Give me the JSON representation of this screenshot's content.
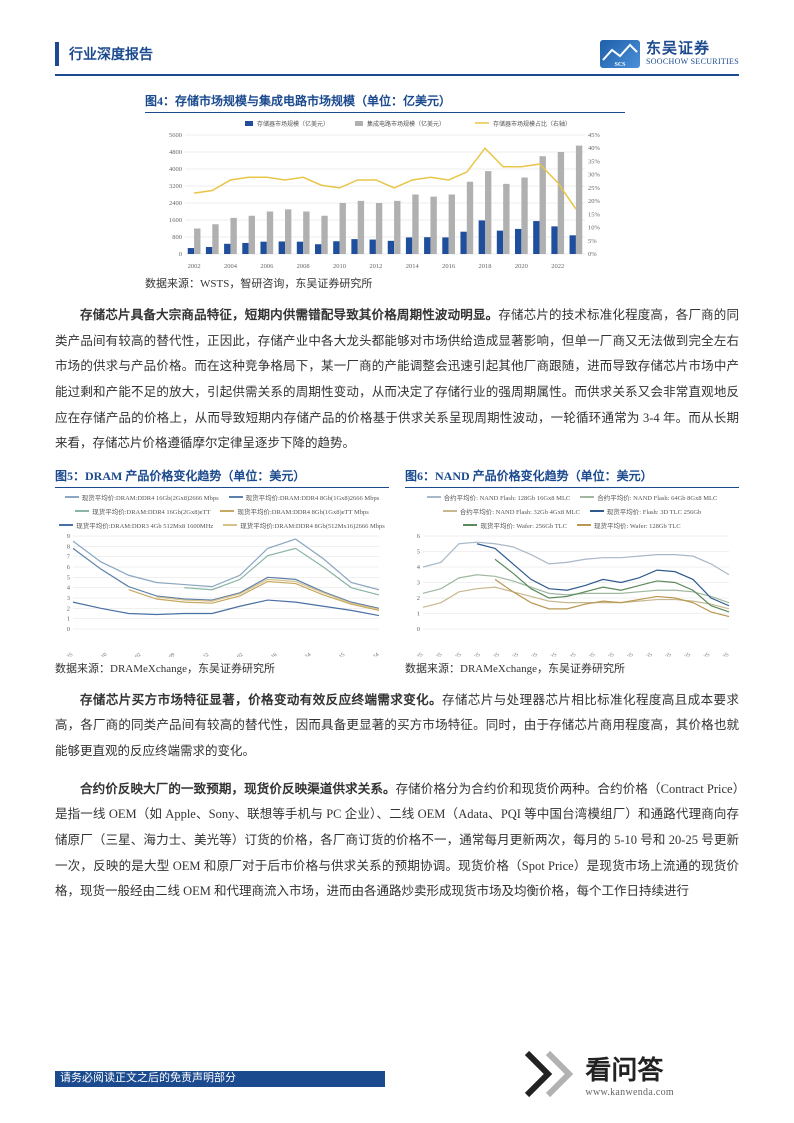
{
  "header": {
    "title": "行业深度报告"
  },
  "logo": {
    "cn": "东吴证券",
    "en": "SOOCHOW SECURITIES"
  },
  "figure4": {
    "title": "图4：存储市场规模与集成电路市场规模（单位：亿美元）",
    "type": "bar+line",
    "legend": [
      "存储器市场规模（亿美元）",
      "集成电路市场规模（亿美元）",
      "存储器市场规模占比（右轴）"
    ],
    "x_labels": [
      "2002",
      "2004",
      "2006",
      "2008",
      "2010",
      "2012",
      "2014",
      "2016",
      "2018",
      "2020",
      "2022"
    ],
    "categories_count": 22,
    "bar1_values": [
      280,
      330,
      480,
      520,
      580,
      590,
      580,
      460,
      600,
      700,
      680,
      620,
      780,
      790,
      780,
      1050,
      1580,
      1100,
      1180,
      1550,
      1300,
      880
    ],
    "bar2_values": [
      1200,
      1400,
      1700,
      1800,
      2000,
      2100,
      2000,
      1800,
      2400,
      2500,
      2400,
      2500,
      2800,
      2700,
      2800,
      3400,
      3900,
      3300,
      3600,
      4600,
      4800,
      5100
    ],
    "bar1_color": "#1f4e9c",
    "bar2_color": "#b0b0b0",
    "line_values": [
      23,
      24,
      28,
      29,
      29,
      28,
      29,
      26,
      25,
      28,
      28,
      25,
      28,
      29,
      28,
      31,
      40,
      33,
      33,
      34,
      27,
      17
    ],
    "line_color": "#e8c547",
    "y1_max": 5600,
    "y1_ticks": [
      0,
      800,
      1600,
      2400,
      3200,
      4000,
      4800,
      5600
    ],
    "y2_max": 45,
    "y2_ticks": [
      "0%",
      "5%",
      "10%",
      "15%",
      "20%",
      "25%",
      "30%",
      "35%",
      "40%",
      "45%"
    ],
    "background_color": "#ffffff",
    "grid_color": "#d9d9d9",
    "source": "数据来源：WSTS，智研咨询，东吴证券研究所"
  },
  "paragraph1": {
    "bold": "存储芯片具备大宗商品特征，短期内供需错配导致其价格周期性波动明显。",
    "text": "存储芯片的技术标准化程度高，各厂商的同类产品间有较高的替代性，正因此，存储产业中各大龙头都能够对市场供给造成显著影响，但单一厂商又无法做到完全左右市场的供求与产品价格。而在这种竞争格局下，某一厂商的产能调整会迅速引起其他厂商跟随，进而导致存储芯片市场中产能过剩和产能不足的放大，引起供需关系的周期性变动，从而决定了存储行业的强周期属性。而供求关系又会非常直观地反应在存储产品的价格上，从而导致短期内存储产品的价格基于供求关系呈现周期性波动，一轮循环通常为 3-4 年。而从长期来看，存储芯片价格遵循摩尔定律呈逐步下降的趋势。"
  },
  "figure5": {
    "title": "图5：DRAM 产品价格变化趋势（单位：美元）",
    "type": "line",
    "legend": [
      "现货平均价:DRAM:DDR4 16Gb(2Gx8)2666 Mbps",
      "现货平均价:DRAM:DDR4 8Gb(1Gx8)2666 Mbps",
      "现货平均价:DRAM:DDR4 16Gb(2Gx8)eTT",
      "现货平均价:DRAM:DDR4 8Gb(1Gx8)eTT Mbps",
      "现货平均价:DRAM:DDR3 4Gb 512Mx8 1600MHz",
      "现货平均价:DRAM:DDR4 8Gb(512Mx16)2666 Mbps"
    ],
    "colors": [
      "#8aa6c1",
      "#5b7fa8",
      "#88b5a5",
      "#c4a960",
      "#4a6fa5",
      "#d9c28a"
    ],
    "y_ticks": [
      0,
      1,
      2,
      3,
      4,
      5,
      6,
      7,
      8,
      9
    ],
    "y_max": 9,
    "x_labels": [
      "2018-07-25",
      "2019-01-10",
      "2019-07-02",
      "2019-12-09",
      "2020-05-22",
      "2020-11-02",
      "2021-04-16",
      "2021-09-24",
      "2022-03-15",
      "2022-08-24"
    ],
    "series": [
      [
        8.5,
        6.5,
        5.2,
        4.5,
        4.3,
        4.1,
        5.2,
        7.8,
        8.7,
        6.8,
        4.5,
        3.8
      ],
      [
        7.8,
        5.8,
        4.1,
        3.2,
        2.9,
        2.8,
        3.5,
        5.0,
        4.8,
        3.6,
        2.6,
        2.0
      ],
      [
        null,
        null,
        null,
        null,
        4.0,
        3.8,
        4.8,
        7.1,
        7.8,
        6.0,
        4.0,
        3.3
      ],
      [
        null,
        null,
        3.8,
        2.9,
        2.6,
        2.5,
        3.2,
        4.6,
        4.4,
        3.3,
        2.4,
        1.8
      ],
      [
        2.6,
        2.0,
        1.5,
        1.4,
        1.5,
        1.5,
        2.2,
        2.8,
        2.6,
        2.2,
        1.8,
        1.3
      ],
      [
        null,
        null,
        null,
        3.1,
        2.8,
        2.7,
        3.4,
        4.8,
        4.6,
        3.5,
        2.5,
        1.9
      ]
    ],
    "grid_color": "#e0e0e0",
    "source": "数据来源：DRAMeXchange，东吴证券研究所"
  },
  "figure6": {
    "title": "图6：NAND 产品价格变化趋势（单位：美元）",
    "type": "line",
    "legend": [
      "合约平均价: NAND Flash: 128Gb 16Gx8 MLC",
      "合约平均价: NAND Flash: 64Gb 8Gx8 MLC",
      "合约平均价: NAND Flash: 32Gb 4Gx8 MLC",
      "现货平均价: Flash: 3D TLC 256Gb",
      "现货平均价: Wafer: 256Gb TLC",
      "现货平均价: Wafer: 128Gb TLC"
    ],
    "colors": [
      "#a8b8c8",
      "#9fb89f",
      "#c8b890",
      "#2f5a8f",
      "#5b8a5b",
      "#b89850"
    ],
    "y_ticks": [
      0,
      1,
      2,
      3,
      4,
      5,
      6
    ],
    "y_max": 6,
    "x_labels": [
      "2016-05-25",
      "2016-10-25",
      "2017-03-25",
      "2017-08-25",
      "2018-01-25",
      "2018-06-25",
      "2018-11-25",
      "2019-04-25",
      "2019-09-25",
      "2020-02-25",
      "2020-07-25",
      "2020-12-25",
      "2021-05-25",
      "2021-10-25",
      "2022-03-25",
      "2022-08-25",
      "2023-01-25"
    ],
    "series": [
      [
        4.0,
        4.3,
        5.5,
        5.6,
        5.5,
        5.3,
        4.8,
        4.2,
        4.3,
        4.5,
        4.6,
        4.6,
        4.7,
        4.8,
        4.8,
        4.7,
        4.2,
        3.5
      ],
      [
        2.3,
        2.6,
        3.3,
        3.5,
        3.4,
        3.1,
        2.7,
        2.3,
        2.2,
        2.3,
        2.3,
        2.3,
        2.4,
        2.5,
        2.5,
        2.4,
        2.1,
        1.7
      ],
      [
        1.4,
        1.7,
        2.4,
        2.6,
        2.7,
        2.4,
        2.1,
        1.8,
        1.7,
        1.7,
        1.7,
        1.7,
        1.8,
        1.9,
        1.9,
        1.8,
        1.6,
        1.3
      ],
      [
        null,
        null,
        null,
        5.5,
        5.2,
        4.2,
        3.2,
        2.6,
        2.5,
        2.8,
        3.2,
        3.0,
        3.3,
        3.8,
        3.7,
        3.2,
        2.0,
        1.5
      ],
      [
        null,
        null,
        null,
        null,
        4.5,
        3.6,
        2.6,
        2.0,
        2.1,
        2.4,
        2.7,
        2.5,
        2.8,
        3.1,
        3.0,
        2.5,
        1.5,
        1.1
      ],
      [
        null,
        null,
        null,
        null,
        3.2,
        2.4,
        1.7,
        1.3,
        1.3,
        1.6,
        1.8,
        1.7,
        1.9,
        2.1,
        2.0,
        1.7,
        1.1,
        0.8
      ]
    ],
    "grid_color": "#e0e0e0",
    "source": "数据来源：DRAMeXchange，东吴证券研究所"
  },
  "paragraph2": {
    "bold": "存储芯片买方市场特征显著，价格变动有效反应终端需求变化。",
    "text": "存储芯片与处理器芯片相比标准化程度高且成本要求高，各厂商的同类产品间有较高的替代性，因而具备更显著的买方市场特征。同时，由于存储芯片商用程度高，其价格也就能够更直观的反应终端需求的变化。"
  },
  "paragraph3": {
    "bold": "合约价反映大厂的一致预期，现货价反映渠道供求关系。",
    "text": "存储价格分为合约价和现货价两种。合约价格（Contract Price）是指一线 OEM（如 Apple、Sony、联想等手机与 PC 企业）、二线 OEM（Adata、PQI 等中国台湾模组厂）和通路代理商向存储原厂（三星、海力士、美光等）订货的价格，各厂商订货的价格不一，通常每月更新两次，每月的 5-10 号和 20-25 号更新一次，反映的是大型 OEM 和原厂对于后市价格与供求关系的预期协调。现货价格（Spot Price）是现货市场上流通的现货价格，现货一般经由二线 OEM 和代理商流入市场，进而由各通路炒卖形成现货市场及均衡价格，每个工作日持续进行"
  },
  "footer": {
    "text": "请务必阅读正文之后的免责声明部分"
  },
  "watermark": {
    "cn": "看问答",
    "url": "www.kanwenda.com"
  }
}
